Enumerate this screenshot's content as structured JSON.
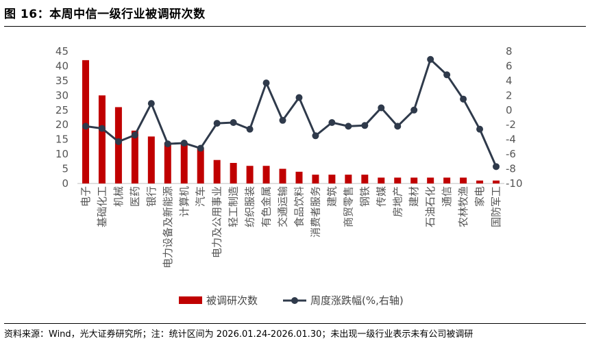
{
  "figure": {
    "title": "图 16：本周中信一级行业被调研次数",
    "source": "资料来源：Wind，光大证券研究所；注：统计区间为 2026.01.24-2026.01.30；未出现一级行业表示未有公司被调研"
  },
  "chart_data": {
    "type": "bar+line",
    "categories": [
      "电子",
      "基础化工",
      "机械",
      "医药",
      "银行",
      "电力设备及新能源",
      "计算机",
      "汽车",
      "电力及公用事业",
      "轻工制造",
      "纺织服装",
      "有色金属",
      "交通运输",
      "食品饮料",
      "消费者服务",
      "建筑",
      "商贸零售",
      "钢铁",
      "传媒",
      "房地产",
      "建材",
      "石油石化",
      "通信",
      "农林牧渔",
      "家电",
      "国防军工"
    ],
    "series": [
      {
        "name": "被调研次数",
        "type": "bar",
        "axis": "left",
        "color": "#C00000",
        "values": [
          42,
          30,
          26,
          18,
          16,
          14,
          14,
          12,
          8,
          7,
          6,
          6,
          5,
          4,
          3,
          3,
          3,
          3,
          2,
          2,
          2,
          2,
          2,
          2,
          1,
          1
        ]
      },
      {
        "name": "周度涨跌幅(%,右轴)",
        "type": "line",
        "axis": "right",
        "color": "#2F3A4B",
        "values": [
          -2.2,
          -2.5,
          -4.3,
          -3.4,
          0.9,
          -4.6,
          -4.5,
          -5.2,
          -1.8,
          -1.7,
          -2.6,
          3.7,
          -1.4,
          1.7,
          -3.5,
          -1.7,
          -2.2,
          -2.1,
          0.3,
          -2.2,
          0.0,
          6.9,
          4.8,
          1.5,
          -2.6,
          -7.7
        ]
      }
    ],
    "y_left": {
      "min": 0,
      "max": 45,
      "step": 5,
      "ticks": [
        "0",
        "5",
        "10",
        "15",
        "20",
        "25",
        "30",
        "35",
        "40",
        "45"
      ]
    },
    "y_right": {
      "min": -10,
      "max": 8,
      "step": 2,
      "ticks": [
        "-10",
        "-8",
        "-6",
        "-4",
        "-2",
        "0",
        "2",
        "4",
        "6",
        "8"
      ]
    },
    "grid": false,
    "legend_position": "bottom"
  }
}
